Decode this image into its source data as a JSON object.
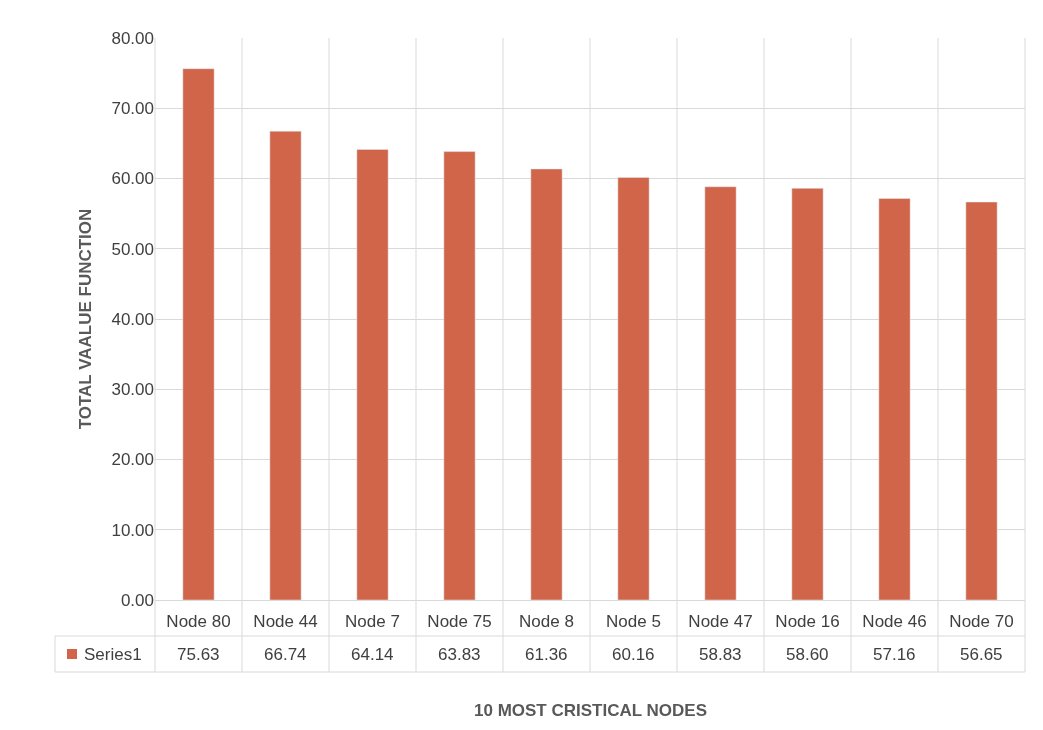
{
  "chart_data": {
    "type": "bar",
    "xlabel": "10 MOST CRISTICAL NODES",
    "ylabel": "TOTAL VAALUE FUNCTION",
    "categories": [
      "Node 80",
      "Node 44",
      "Node 7",
      "Node 75",
      "Node 8",
      "Node 5",
      "Node 47",
      "Node 16",
      "Node 46",
      "Node 70"
    ],
    "series": [
      {
        "name": "Series1",
        "color": "#d1654a",
        "values": [
          75.63,
          66.74,
          64.14,
          63.83,
          61.36,
          60.16,
          58.83,
          58.6,
          57.16,
          56.65
        ]
      }
    ],
    "ylim": [
      0,
      80
    ],
    "yticks": [
      {
        "value": 0,
        "label": "0.00"
      },
      {
        "value": 10,
        "label": "10.00"
      },
      {
        "value": 20,
        "label": "20.00"
      },
      {
        "value": 30,
        "label": "30.00"
      },
      {
        "value": 40,
        "label": "40.00"
      },
      {
        "value": 50,
        "label": "50.00"
      },
      {
        "value": 60,
        "label": "60.00"
      },
      {
        "value": 70,
        "label": "70.00"
      },
      {
        "value": 80,
        "label": "80.00"
      }
    ],
    "grid": "y",
    "value_labels": [
      "75.63",
      "66.74",
      "64.14",
      "63.83",
      "61.36",
      "60.16",
      "58.83",
      "58.60",
      "57.16",
      "56.65"
    ]
  }
}
